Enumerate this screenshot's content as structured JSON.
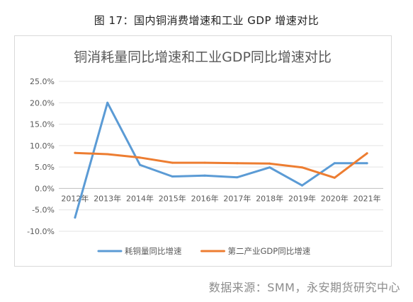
{
  "figure_caption": "图 17：国内铜消费增速和工业 GDP 增速对比",
  "source_note": "数据来源：SMM，永安期货研究中心",
  "chart_data": {
    "type": "line",
    "title": "铜消耗量同比增速和工业GDP同比增速对比",
    "categories": [
      "2012年",
      "2013年",
      "2014年",
      "2015年",
      "2016年",
      "2017年",
      "2018年",
      "2019年",
      "2020年",
      "2021年"
    ],
    "series": [
      {
        "name": "耗铜量同比增速",
        "color": "#5b9bd5",
        "values": [
          -6.8,
          20.0,
          5.5,
          2.8,
          3.0,
          2.6,
          4.9,
          0.7,
          5.9,
          5.9
        ]
      },
      {
        "name": "第二产业GDP同比增速",
        "color": "#ed7d31",
        "values": [
          8.3,
          8.0,
          7.2,
          6.0,
          6.0,
          5.9,
          5.8,
          4.9,
          2.5,
          8.2
        ]
      }
    ],
    "y_ticks": [
      "25.0%",
      "20.0%",
      "15.0%",
      "10.0%",
      "5.0%",
      "0.0%",
      "-5.0%",
      "-10.0%"
    ],
    "ylim": [
      -10,
      25
    ],
    "y_unit": "%",
    "grid": "horizontal",
    "legend_position": "bottom"
  }
}
